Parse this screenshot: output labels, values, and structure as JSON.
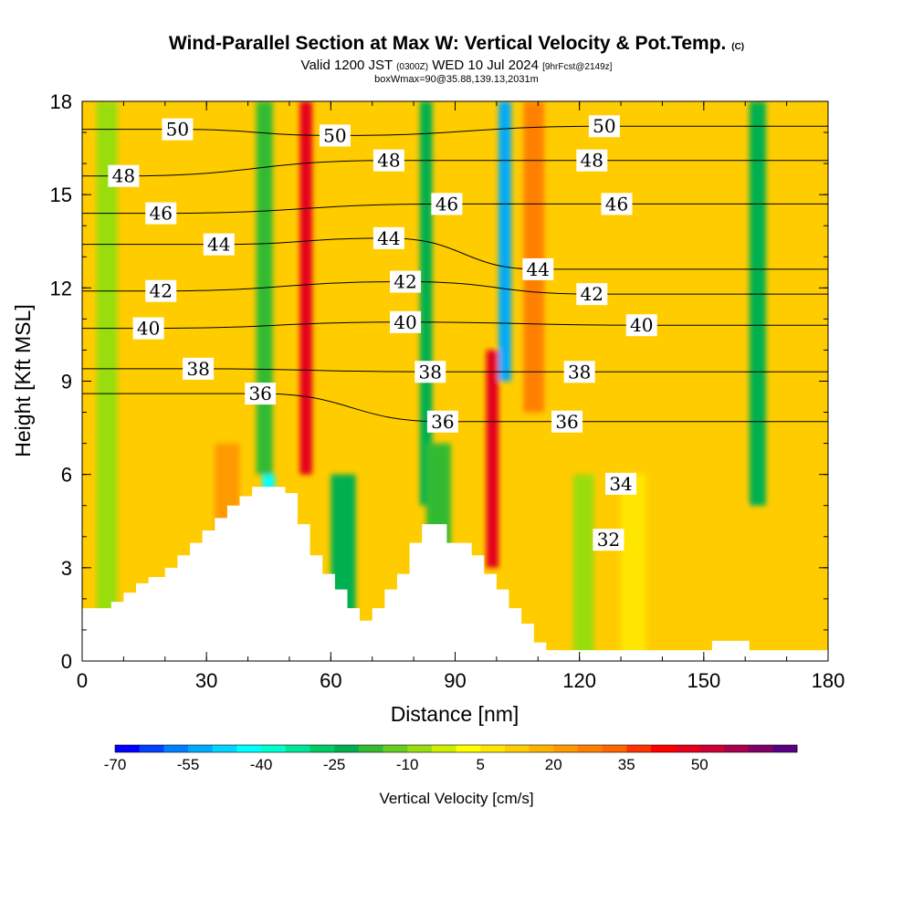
{
  "title": {
    "main": "Wind-Parallel Section at Max W: Vertical Velocity & Pot.Temp.",
    "main_suffix": "(C)",
    "valid_prefix": "Valid 1200 JST",
    "valid_utc": "(0300Z)",
    "valid_date": "WED 10 Jul 2024",
    "forecast": "[9hrFcst@2149z]",
    "box": "boxWmax=90@35.88,139.13,2031m"
  },
  "chart_data": {
    "type": "heatmap",
    "xlabel": "Distance [nm]",
    "ylabel": "Height [Kft MSL]",
    "xlim": [
      0,
      180
    ],
    "ylim": [
      0,
      18
    ],
    "x_ticks": [
      0,
      30,
      60,
      90,
      120,
      150,
      180
    ],
    "y_ticks": [
      0,
      3,
      6,
      9,
      12,
      15,
      18
    ],
    "colorbar": {
      "label": "Vertical Velocity [cm/s]",
      "tick_labels": [
        "-70",
        "-55",
        "-40",
        "-25",
        "-10",
        "5",
        "20",
        "35",
        "50"
      ],
      "levels": [
        -70,
        -65,
        -60,
        -55,
        -50,
        -45,
        -40,
        -35,
        -30,
        -25,
        -20,
        -15,
        -10,
        -5,
        0,
        5,
        10,
        15,
        20,
        25,
        30,
        35,
        40,
        45,
        50,
        55,
        60,
        65
      ],
      "colors": [
        "#0000ff",
        "#0040ff",
        "#0080ff",
        "#00aaff",
        "#00d4ff",
        "#00ffff",
        "#00ffcc",
        "#00e699",
        "#00cc66",
        "#00b050",
        "#33bb33",
        "#66cc22",
        "#99dd11",
        "#ccee00",
        "#ffff00",
        "#ffe600",
        "#ffcc00",
        "#ffb300",
        "#ff9900",
        "#ff8000",
        "#ff6600",
        "#ff3300",
        "#ff0000",
        "#e6001a",
        "#cc0033",
        "#a8004d",
        "#800066",
        "#5a0080"
      ]
    },
    "vertical_velocity_bands": [
      {
        "x": 6,
        "z": [
          0,
          18
        ],
        "w": -6,
        "width": 5
      },
      {
        "x": 22,
        "z": [
          2,
          7
        ],
        "w": 12,
        "width": 14
      },
      {
        "x": 35,
        "z": [
          3,
          7
        ],
        "w": 22,
        "width": 6
      },
      {
        "x": 45,
        "z": [
          4,
          6
        ],
        "w": -45,
        "width": 3
      },
      {
        "x": 44,
        "z": [
          6,
          18
        ],
        "w": -18,
        "width": 4
      },
      {
        "x": 54,
        "z": [
          6,
          18
        ],
        "w": 45,
        "width": 3
      },
      {
        "x": 63,
        "z": [
          1,
          6
        ],
        "w": -22,
        "width": 6
      },
      {
        "x": 73,
        "z": [
          1,
          7
        ],
        "w": 10,
        "width": 6
      },
      {
        "x": 83,
        "z": [
          5,
          18
        ],
        "w": -25,
        "width": 3
      },
      {
        "x": 86,
        "z": [
          1,
          7
        ],
        "w": -20,
        "width": 6
      },
      {
        "x": 99,
        "z": [
          3,
          10
        ],
        "w": 48,
        "width": 3
      },
      {
        "x": 102,
        "z": [
          9,
          18
        ],
        "w": -55,
        "width": 3
      },
      {
        "x": 109,
        "z": [
          8,
          18
        ],
        "w": 25,
        "width": 5
      },
      {
        "x": 121,
        "z": [
          0,
          6
        ],
        "w": -8,
        "width": 5
      },
      {
        "x": 133,
        "z": [
          0,
          6
        ],
        "w": 8,
        "width": 6
      },
      {
        "x": 158,
        "z": [
          1,
          5
        ],
        "w": 14,
        "width": 4
      },
      {
        "x": 163,
        "z": [
          5,
          18
        ],
        "w": -22,
        "width": 4
      },
      {
        "x": 170,
        "z": [
          0,
          5
        ],
        "w": 12,
        "width": 6
      },
      {
        "x": 171,
        "z": [
          9,
          18
        ],
        "w": 10,
        "width": 6
      }
    ],
    "terrain": {
      "x": [
        0,
        7,
        7,
        10,
        10,
        13,
        13,
        16,
        16,
        20,
        20,
        23,
        23,
        26,
        26,
        29,
        29,
        32,
        32,
        35,
        35,
        38,
        38,
        41,
        41,
        43,
        43,
        49,
        49,
        52,
        52,
        55,
        55,
        58,
        58,
        61,
        61,
        64,
        64,
        67,
        67,
        70,
        70,
        73,
        73,
        76,
        76,
        79,
        79,
        82,
        82,
        88,
        88,
        94,
        94,
        97,
        97,
        100,
        100,
        103,
        103,
        106,
        106,
        109,
        109,
        112,
        112,
        152,
        152,
        161,
        161,
        180
      ],
      "z": [
        1.7,
        1.7,
        1.9,
        1.9,
        2.2,
        2.2,
        2.5,
        2.5,
        2.7,
        2.7,
        3.0,
        3.0,
        3.4,
        3.4,
        3.8,
        3.8,
        4.2,
        4.2,
        4.6,
        4.6,
        5.0,
        5.0,
        5.3,
        5.3,
        5.6,
        5.6,
        5.6,
        5.6,
        5.4,
        5.4,
        4.4,
        4.4,
        3.4,
        3.4,
        2.8,
        2.8,
        2.3,
        2.3,
        1.7,
        1.7,
        1.3,
        1.3,
        1.7,
        1.7,
        2.3,
        2.3,
        2.8,
        2.8,
        3.8,
        3.8,
        4.4,
        4.4,
        3.8,
        3.8,
        3.4,
        3.4,
        2.8,
        2.8,
        2.3,
        2.3,
        1.7,
        1.7,
        1.2,
        1.2,
        0.6,
        0.6,
        0.35,
        0.35,
        0.65,
        0.65,
        0.35,
        0.35
      ]
    },
    "isentrope_labels": [
      {
        "text": "50",
        "x": 23,
        "z": 17.1
      },
      {
        "text": "50",
        "x": 61,
        "z": 16.9
      },
      {
        "text": "50",
        "x": 126,
        "z": 17.2
      },
      {
        "text": "48",
        "x": 10,
        "z": 15.6
      },
      {
        "text": "48",
        "x": 74,
        "z": 16.1
      },
      {
        "text": "48",
        "x": 123,
        "z": 16.1
      },
      {
        "text": "46",
        "x": 19,
        "z": 14.4
      },
      {
        "text": "46",
        "x": 88,
        "z": 14.7
      },
      {
        "text": "46",
        "x": 129,
        "z": 14.7
      },
      {
        "text": "44",
        "x": 33,
        "z": 13.4
      },
      {
        "text": "44",
        "x": 74,
        "z": 13.6
      },
      {
        "text": "44",
        "x": 110,
        "z": 12.6
      },
      {
        "text": "42",
        "x": 19,
        "z": 11.9
      },
      {
        "text": "42",
        "x": 78,
        "z": 12.2
      },
      {
        "text": "42",
        "x": 123,
        "z": 11.8
      },
      {
        "text": "40",
        "x": 16,
        "z": 10.7
      },
      {
        "text": "40",
        "x": 78,
        "z": 10.9
      },
      {
        "text": "40",
        "x": 135,
        "z": 10.8
      },
      {
        "text": "38",
        "x": 28,
        "z": 9.4
      },
      {
        "text": "38",
        "x": 84,
        "z": 9.3
      },
      {
        "text": "38",
        "x": 120,
        "z": 9.3
      },
      {
        "text": "36",
        "x": 43,
        "z": 8.6
      },
      {
        "text": "36",
        "x": 87,
        "z": 7.7
      },
      {
        "text": "36",
        "x": 117,
        "z": 7.7
      },
      {
        "text": "34",
        "x": 130,
        "z": 5.7
      },
      {
        "text": "32",
        "x": 127,
        "z": 3.9
      }
    ]
  }
}
